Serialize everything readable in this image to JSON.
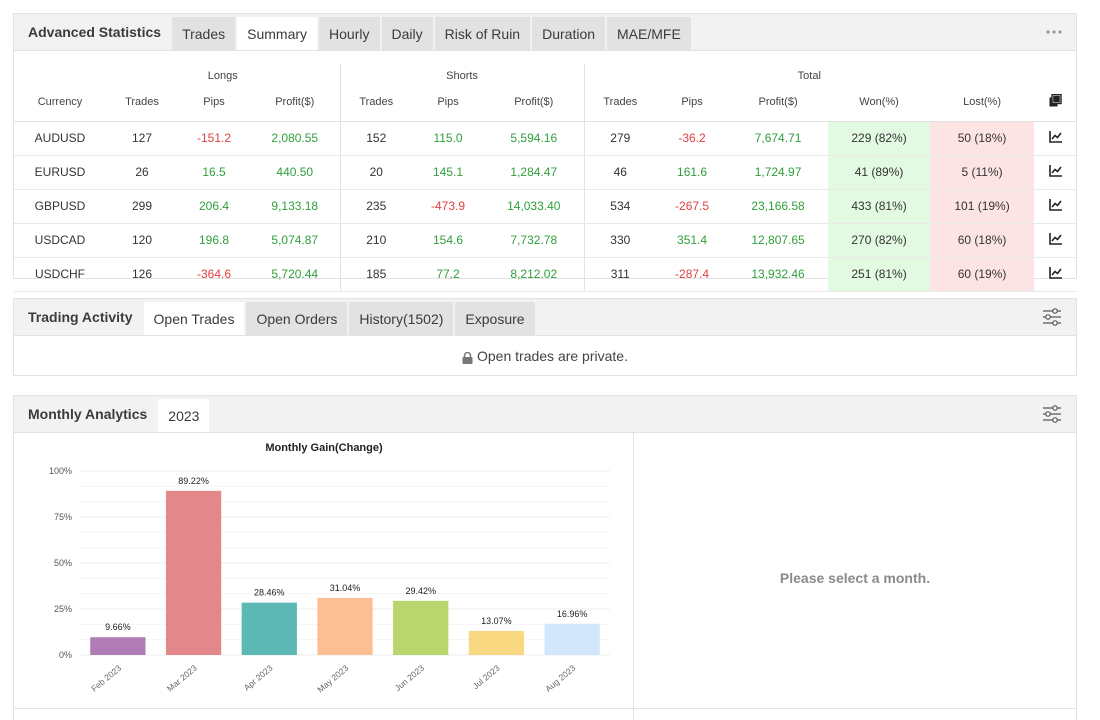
{
  "advanced": {
    "title": "Advanced Statistics",
    "tabs": [
      "Trades",
      "Summary",
      "Hourly",
      "Daily",
      "Risk of Ruin",
      "Duration",
      "MAE/MFE"
    ],
    "active_tab": 1,
    "more_icon": "more-dots-icon",
    "groups": {
      "longs": "Longs",
      "shorts": "Shorts",
      "total": "Total"
    },
    "headers": [
      "Currency",
      "Trades",
      "Pips",
      "Profit($)",
      "Trades",
      "Pips",
      "Profit($)",
      "Trades",
      "Pips",
      "Profit($)",
      "Won(%)",
      "Lost(%)"
    ],
    "copy_icon": "copy-icon",
    "rows": [
      {
        "currency": "AUDUSD",
        "l_trades": "127",
        "l_pips": "-151.2",
        "l_profit": "2,080.55",
        "s_trades": "152",
        "s_pips": "115.0",
        "s_profit": "5,594.16",
        "t_trades": "279",
        "t_pips": "-36.2",
        "t_profit": "7,674.71",
        "won": "229 (82%)",
        "lost": "50 (18%)"
      },
      {
        "currency": "EURUSD",
        "l_trades": "26",
        "l_pips": "16.5",
        "l_profit": "440.50",
        "s_trades": "20",
        "s_pips": "145.1",
        "s_profit": "1,284.47",
        "t_trades": "46",
        "t_pips": "161.6",
        "t_profit": "1,724.97",
        "won": "41 (89%)",
        "lost": "5 (11%)"
      },
      {
        "currency": "GBPUSD",
        "l_trades": "299",
        "l_pips": "206.4",
        "l_profit": "9,133.18",
        "s_trades": "235",
        "s_pips": "-473.9",
        "s_profit": "14,033.40",
        "t_trades": "534",
        "t_pips": "-267.5",
        "t_profit": "23,166.58",
        "won": "433 (81%)",
        "lost": "101 (19%)"
      },
      {
        "currency": "USDCAD",
        "l_trades": "120",
        "l_pips": "196.8",
        "l_profit": "5,074.87",
        "s_trades": "210",
        "s_pips": "154.6",
        "s_profit": "7,732.78",
        "t_trades": "330",
        "t_pips": "351.4",
        "t_profit": "12,807.65",
        "won": "270 (82%)",
        "lost": "60 (18%)"
      },
      {
        "currency": "USDCHF",
        "l_trades": "126",
        "l_pips": "-364.6",
        "l_profit": "5,720.44",
        "s_trades": "185",
        "s_pips": "77.2",
        "s_profit": "8,212.02",
        "t_trades": "311",
        "t_pips": "-287.4",
        "t_profit": "13,932.46",
        "won": "251 (81%)",
        "lost": "60 (19%)"
      }
    ],
    "row_icon": "chart-line-icon"
  },
  "activity": {
    "title": "Trading Activity",
    "tabs": [
      "Open Trades",
      "Open Orders",
      "History(1502)",
      "Exposure"
    ],
    "active_tab": 0,
    "settings_icon": "sliders-icon",
    "lock_icon": "lock-icon",
    "message": "Open trades are private."
  },
  "monthly": {
    "title": "Monthly Analytics",
    "year_tab": "2023",
    "settings_icon": "sliders-icon",
    "hint": "Please select a month."
  },
  "colors": {
    "positive": "#2f9f3a",
    "negative": "#e04040",
    "won_bg": "#e2f9e2",
    "lost_bg": "#fde4e4"
  },
  "chart_data": {
    "type": "bar",
    "title": "Monthly Gain(Change)",
    "categories": [
      "Feb 2023",
      "Mar 2023",
      "Apr 2023",
      "May 2023",
      "Jun 2023",
      "Jul 2023",
      "Aug 2023"
    ],
    "values": [
      9.66,
      89.22,
      28.46,
      31.04,
      29.42,
      13.07,
      16.96
    ],
    "value_labels": [
      "9.66%",
      "89.22%",
      "28.46%",
      "31.04%",
      "29.42%",
      "13.07%",
      "16.96%"
    ],
    "bar_colors": [
      "#b07cb5",
      "#e2888a",
      "#5bb8b5",
      "#fcbf94",
      "#b9d66e",
      "#f8d880",
      "#d2e7fb"
    ],
    "yticks": [
      "0%",
      "25%",
      "50%",
      "75%",
      "100%"
    ],
    "ylim": [
      0,
      100
    ],
    "grid": true,
    "xlabel": "",
    "ylabel": ""
  }
}
